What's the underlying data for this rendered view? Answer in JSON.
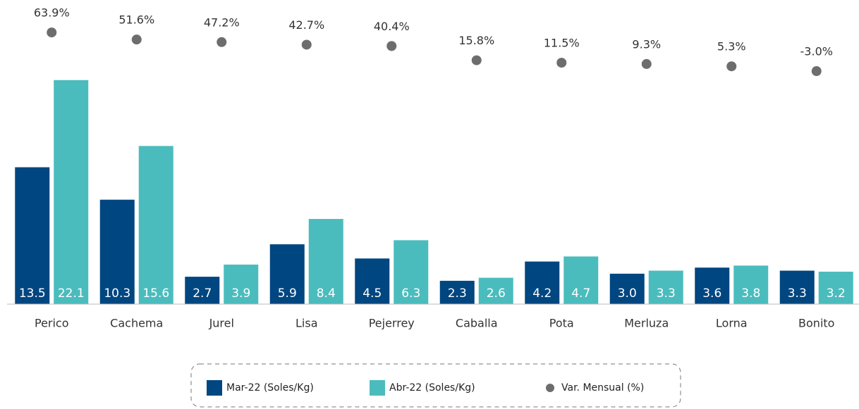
{
  "chart_data": {
    "type": "bar",
    "categories": [
      "Perico",
      "Cachema",
      "Jurel",
      "Lisa",
      "Pejerrey",
      "Caballa",
      "Pota",
      "Merluza",
      "Lorna",
      "Bonito"
    ],
    "ylim": [
      0,
      30
    ],
    "y2lim": [
      -406,
      120
    ],
    "series": [
      {
        "name": "Mar-22 (Soles/Kg)",
        "color": "#004680",
        "values": [
          13.5,
          10.3,
          2.7,
          5.9,
          4.5,
          2.3,
          4.2,
          3.0,
          3.6,
          3.3
        ],
        "value_labels": [
          "13.5",
          "10.3",
          "2.7",
          "5.9",
          "4.5",
          "2.3",
          "4.2",
          "3.0",
          "3.6",
          "3.3"
        ]
      },
      {
        "name": "Abr-22 (Soles/Kg)",
        "color": "#4bbcbd",
        "values": [
          22.1,
          15.6,
          3.9,
          8.4,
          6.3,
          2.6,
          4.7,
          3.3,
          3.8,
          3.2
        ],
        "value_labels": [
          "22.1",
          "15.6",
          "3.9",
          "8.4",
          "6.3",
          "2.6",
          "4.7",
          "3.3",
          "3.8",
          "3.2"
        ]
      },
      {
        "name": "Var. Mensual (%)",
        "color": "#6d6d6d",
        "type": "scatter",
        "axis": "y2",
        "values": [
          63.9,
          51.6,
          47.2,
          42.7,
          40.4,
          15.8,
          11.5,
          9.3,
          5.3,
          -3.0
        ],
        "value_labels": [
          "63.9%",
          "51.6%",
          "47.2%",
          "42.7%",
          "40.4%",
          "15.8%",
          "11.5%",
          "9.3%",
          "5.3%",
          "-3.0%"
        ]
      }
    ]
  }
}
